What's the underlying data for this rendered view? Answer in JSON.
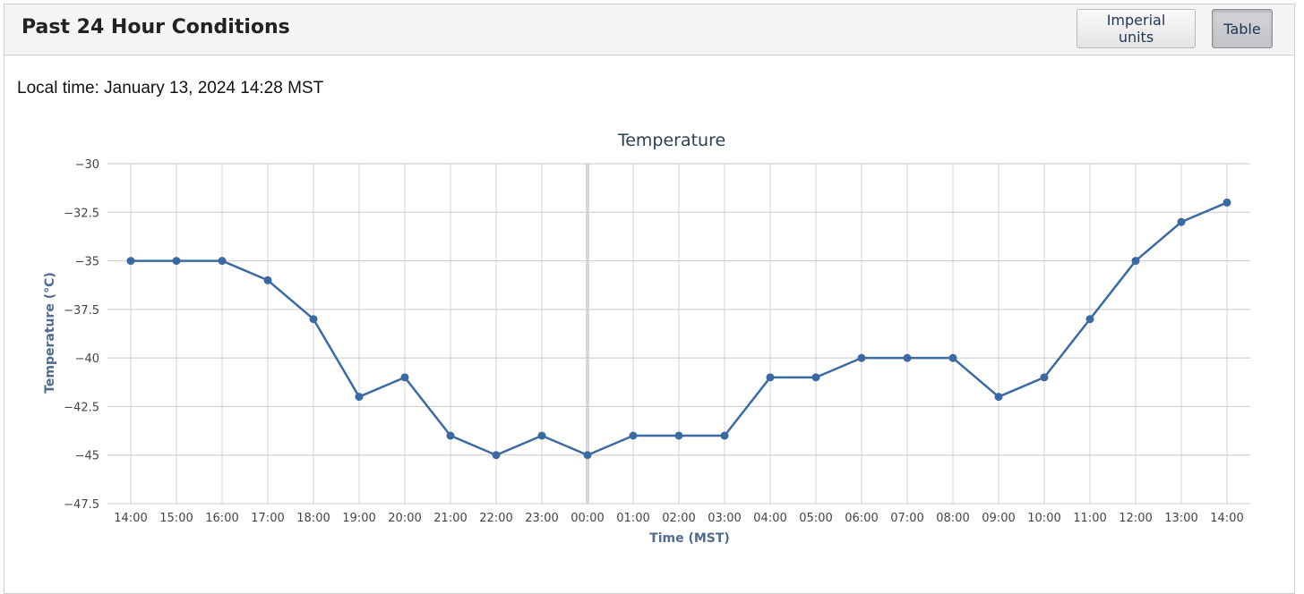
{
  "header": {
    "title": "Past 24 Hour Conditions",
    "units_button": "Imperial units",
    "table_button": "Table"
  },
  "local_time": "Local time: January 13, 2024 14:28 MST",
  "colors": {
    "series": "#3b6aa3",
    "grid": "#d3d3d3",
    "midnight_line": "#d9d9d9"
  },
  "chart_data": {
    "type": "line",
    "title": "Temperature",
    "xlabel": "Time (MST)",
    "ylabel": "Temperature (°C)",
    "categories": [
      "14:00",
      "15:00",
      "16:00",
      "17:00",
      "18:00",
      "19:00",
      "20:00",
      "21:00",
      "22:00",
      "23:00",
      "00:00",
      "01:00",
      "02:00",
      "03:00",
      "04:00",
      "05:00",
      "06:00",
      "07:00",
      "08:00",
      "09:00",
      "10:00",
      "11:00",
      "12:00",
      "13:00",
      "14:00"
    ],
    "series": [
      {
        "values": [
          -35,
          -35,
          -35,
          -36,
          -38,
          -42,
          -41,
          -44,
          -45,
          -44,
          -45,
          -44,
          -44,
          -44,
          -41,
          -41,
          -40,
          -40,
          -40,
          -42,
          -41,
          -38,
          -35,
          -33,
          -32
        ]
      }
    ],
    "yticks": [
      "−30",
      "−32.5",
      "−35",
      "−37.5",
      "−40",
      "−42.5",
      "−45",
      "−47.5"
    ],
    "ylim": [
      -47.5,
      -30
    ],
    "grid": true,
    "legend": false
  }
}
